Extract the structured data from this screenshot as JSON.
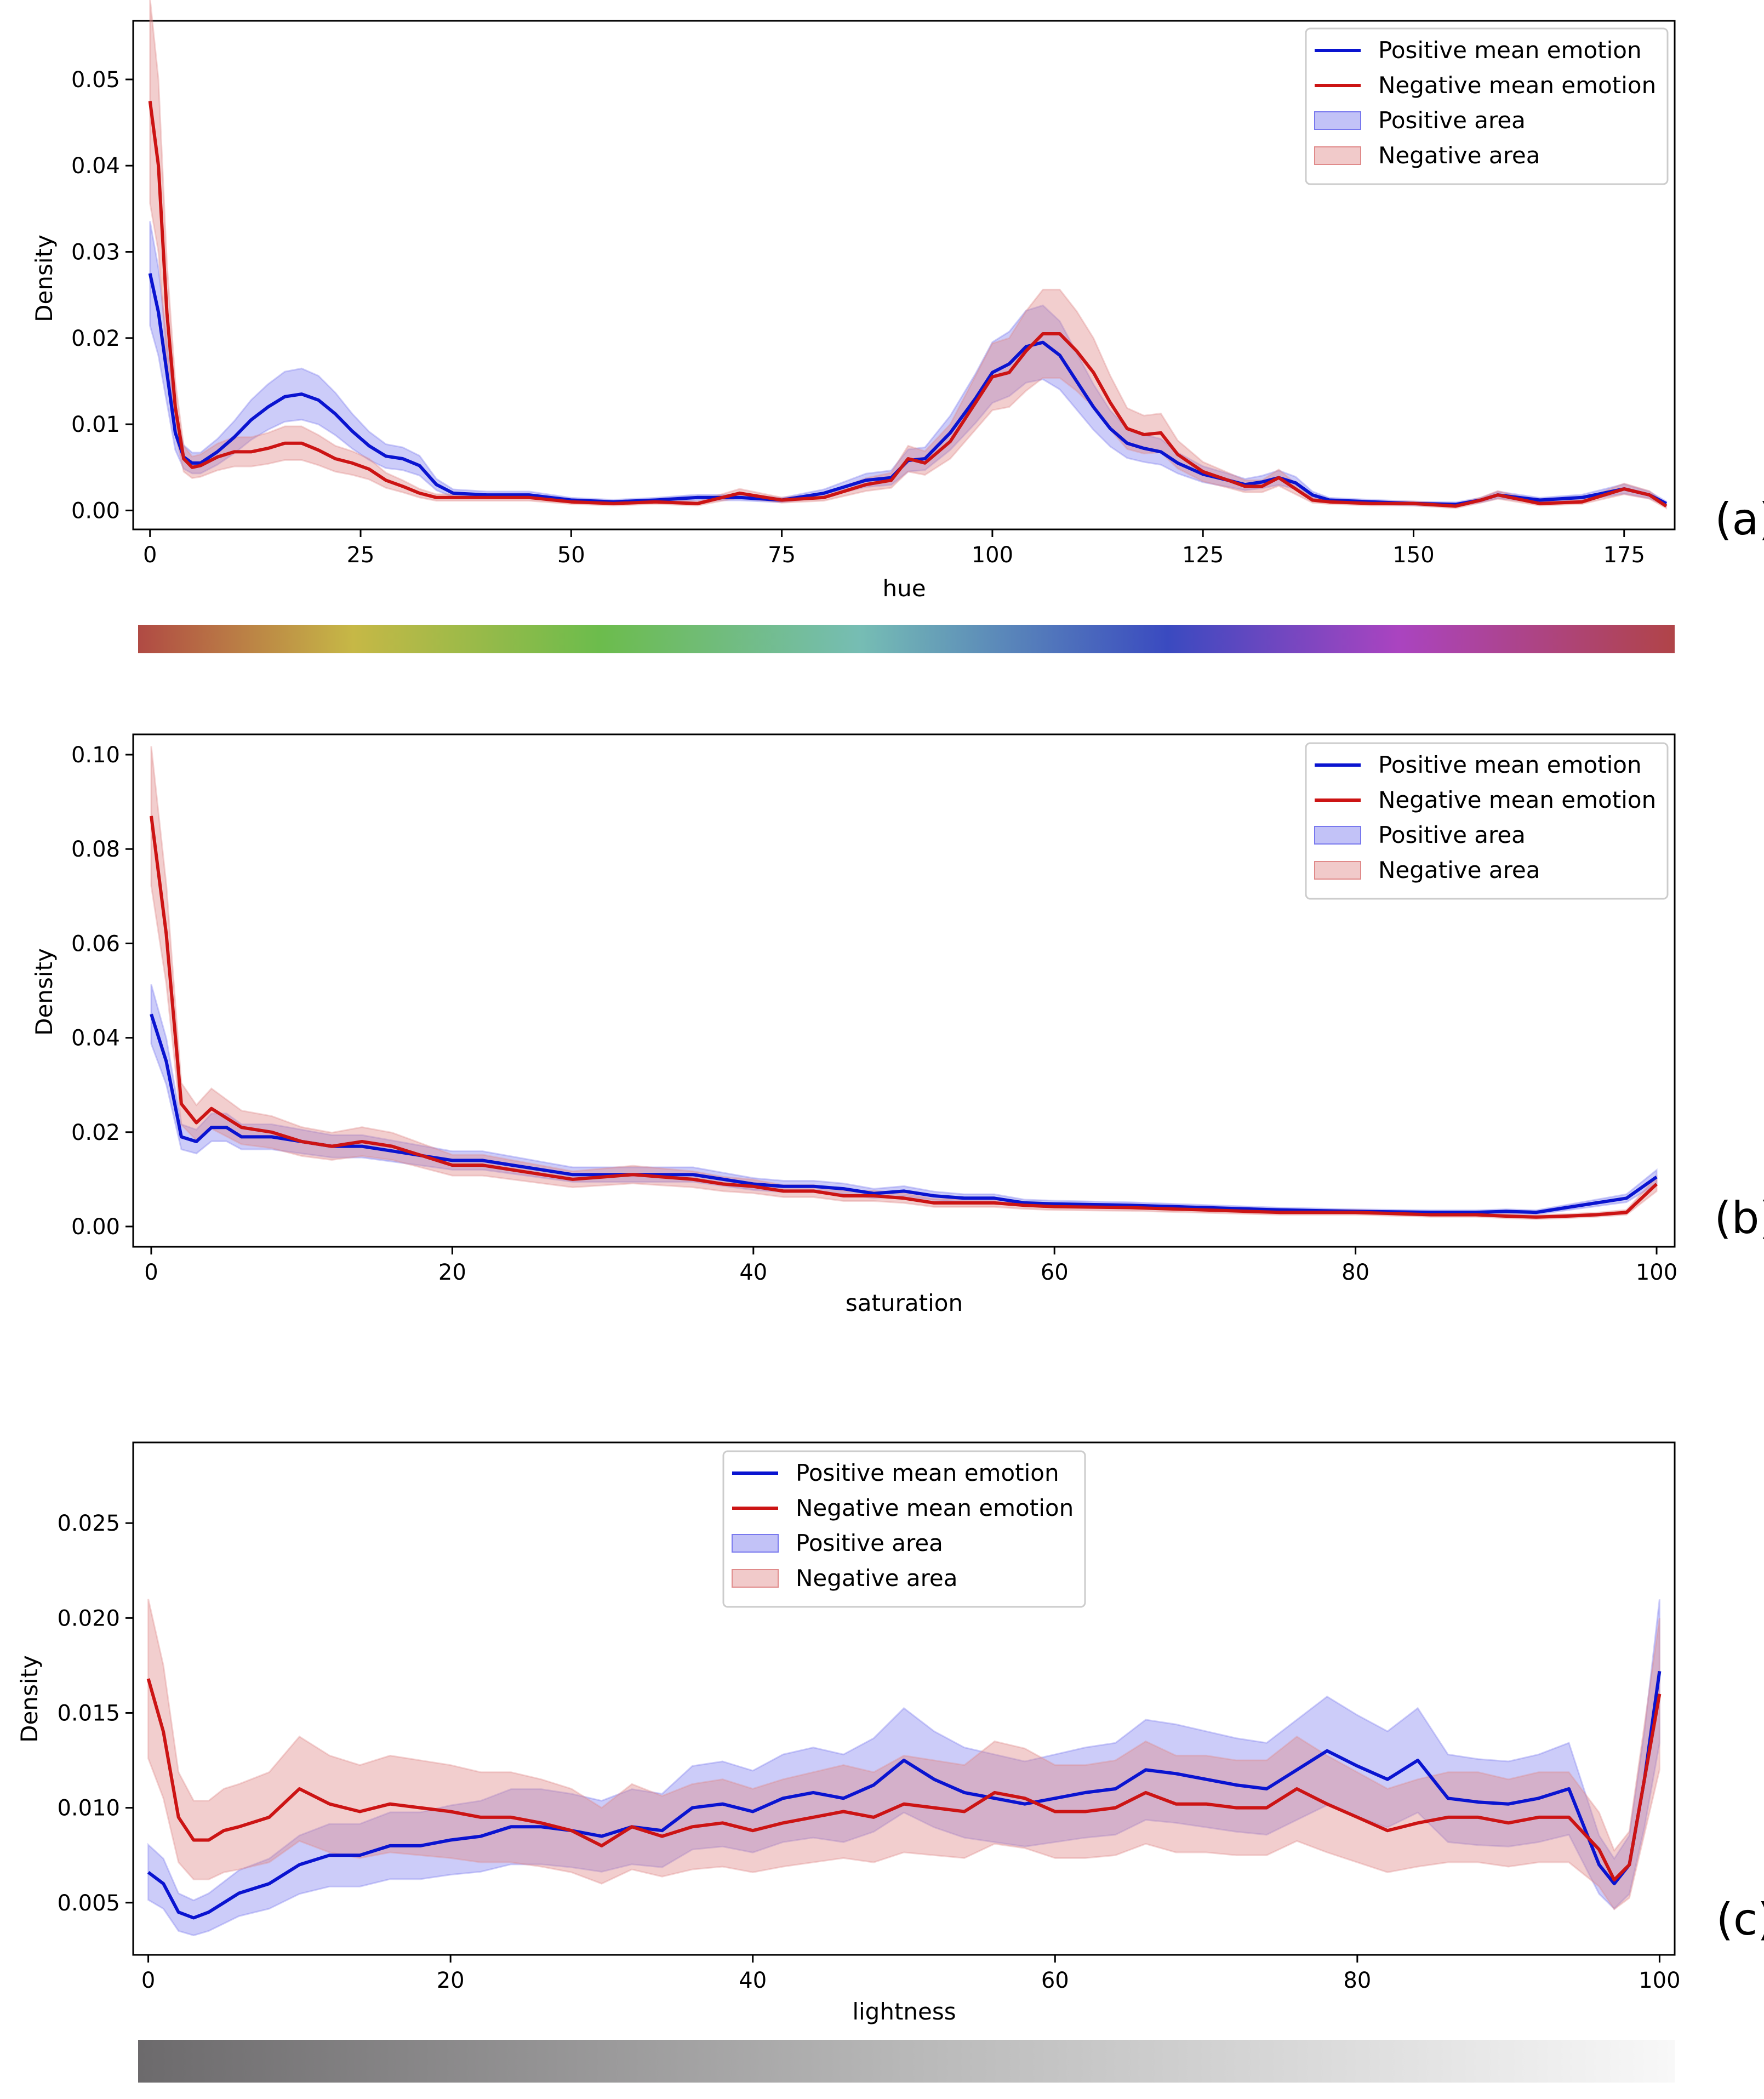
{
  "colors": {
    "positive": "#0a14d0",
    "negative": "#cc1414",
    "positive_area": "#7878ee",
    "negative_area": "#e08a8a"
  },
  "chart_data": [
    {
      "type": "line",
      "panel": "(a)",
      "xlabel": "hue",
      "ylabel": "Density",
      "xlim": [
        -2,
        181
      ],
      "ylim": [
        -0.0022,
        0.0568
      ],
      "xticks": [
        "0",
        "25",
        "50",
        "75",
        "100",
        "125",
        "150",
        "175"
      ],
      "yticks": [
        "0.00",
        "0.01",
        "0.02",
        "0.03",
        "0.04",
        "0.05"
      ],
      "legend": [
        "Positive mean emotion",
        "Negative mean emotion",
        "Positive area",
        "Negative area"
      ],
      "legend_position": "upper right",
      "colorbar": "hue gradient",
      "series": [
        {
          "name": "Positive mean emotion",
          "x": [
            0,
            1,
            2,
            3,
            4,
            5,
            6,
            8,
            10,
            12,
            14,
            16,
            18,
            20,
            22,
            24,
            26,
            28,
            30,
            32,
            34,
            36,
            40,
            45,
            50,
            55,
            60,
            65,
            70,
            75,
            80,
            85,
            88,
            90,
            92,
            95,
            98,
            100,
            102,
            104,
            106,
            108,
            110,
            112,
            114,
            116,
            118,
            120,
            122,
            125,
            128,
            130,
            132,
            134,
            136,
            138,
            140,
            145,
            150,
            155,
            158,
            160,
            165,
            170,
            175,
            178,
            180
          ],
          "values": [
            0.0275,
            0.023,
            0.016,
            0.009,
            0.0062,
            0.0055,
            0.0055,
            0.0068,
            0.0085,
            0.0105,
            0.012,
            0.0132,
            0.0135,
            0.0128,
            0.0112,
            0.0092,
            0.0075,
            0.0063,
            0.006,
            0.0052,
            0.003,
            0.002,
            0.0018,
            0.0018,
            0.0012,
            0.001,
            0.0012,
            0.0015,
            0.0015,
            0.0012,
            0.002,
            0.0035,
            0.0038,
            0.0058,
            0.006,
            0.009,
            0.013,
            0.016,
            0.017,
            0.019,
            0.0195,
            0.018,
            0.015,
            0.012,
            0.0095,
            0.0078,
            0.0072,
            0.0068,
            0.0055,
            0.0042,
            0.0035,
            0.003,
            0.0033,
            0.0038,
            0.0032,
            0.0018,
            0.0012,
            0.001,
            0.0008,
            0.0007,
            0.0012,
            0.0018,
            0.0012,
            0.0015,
            0.0025,
            0.0018,
            0.0008
          ]
        },
        {
          "name": "Negative mean emotion",
          "x": [
            0,
            1,
            2,
            3,
            4,
            5,
            6,
            8,
            10,
            12,
            14,
            16,
            18,
            20,
            22,
            24,
            26,
            28,
            30,
            32,
            34,
            36,
            40,
            45,
            50,
            55,
            60,
            65,
            70,
            75,
            80,
            85,
            88,
            90,
            92,
            95,
            98,
            100,
            102,
            104,
            106,
            108,
            110,
            112,
            114,
            116,
            118,
            120,
            122,
            125,
            128,
            130,
            132,
            134,
            136,
            138,
            140,
            145,
            150,
            155,
            158,
            160,
            165,
            170,
            175,
            178,
            180
          ],
          "values": [
            0.0475,
            0.04,
            0.023,
            0.012,
            0.006,
            0.005,
            0.0052,
            0.0062,
            0.0068,
            0.0068,
            0.0072,
            0.0078,
            0.0078,
            0.007,
            0.006,
            0.0055,
            0.0048,
            0.0035,
            0.0028,
            0.002,
            0.0015,
            0.0015,
            0.0015,
            0.0015,
            0.001,
            0.0008,
            0.001,
            0.0008,
            0.002,
            0.0012,
            0.0015,
            0.003,
            0.0035,
            0.006,
            0.0055,
            0.008,
            0.0125,
            0.0155,
            0.016,
            0.0185,
            0.0205,
            0.0205,
            0.0185,
            0.016,
            0.0125,
            0.0095,
            0.0088,
            0.009,
            0.0065,
            0.0045,
            0.0035,
            0.0028,
            0.0028,
            0.0038,
            0.0025,
            0.0012,
            0.001,
            0.0008,
            0.0008,
            0.0005,
            0.0012,
            0.0018,
            0.0008,
            0.001,
            0.0025,
            0.0018,
            0.0005
          ]
        }
      ]
    },
    {
      "type": "line",
      "panel": "(b)",
      "xlabel": "saturation",
      "ylabel": "Density",
      "xlim": [
        -1.2,
        101.2
      ],
      "ylim": [
        -0.0043,
        0.1043
      ],
      "xticks": [
        "0",
        "20",
        "40",
        "60",
        "80",
        "100"
      ],
      "yticks": [
        "0.00",
        "0.02",
        "0.04",
        "0.06",
        "0.08",
        "0.10"
      ],
      "legend": [
        "Positive mean emotion",
        "Negative mean emotion",
        "Positive area",
        "Negative area"
      ],
      "legend_position": "upper right",
      "series": [
        {
          "name": "Positive mean emotion",
          "x": [
            0,
            1,
            2,
            3,
            4,
            5,
            6,
            8,
            10,
            12,
            14,
            16,
            18,
            20,
            22,
            24,
            26,
            28,
            30,
            32,
            34,
            36,
            38,
            40,
            42,
            44,
            46,
            48,
            50,
            52,
            54,
            56,
            58,
            60,
            65,
            70,
            75,
            80,
            85,
            88,
            90,
            92,
            94,
            96,
            98,
            100
          ],
          "values": [
            0.045,
            0.035,
            0.019,
            0.018,
            0.021,
            0.021,
            0.019,
            0.019,
            0.018,
            0.017,
            0.017,
            0.016,
            0.015,
            0.014,
            0.014,
            0.013,
            0.012,
            0.011,
            0.011,
            0.011,
            0.011,
            0.011,
            0.01,
            0.009,
            0.0085,
            0.0085,
            0.008,
            0.007,
            0.0075,
            0.0065,
            0.006,
            0.006,
            0.005,
            0.0048,
            0.0045,
            0.004,
            0.0035,
            0.0032,
            0.003,
            0.003,
            0.0032,
            0.003,
            0.004,
            0.005,
            0.006,
            0.0105
          ]
        },
        {
          "name": "Negative mean emotion",
          "x": [
            0,
            1,
            2,
            3,
            4,
            5,
            6,
            8,
            10,
            12,
            14,
            16,
            18,
            20,
            22,
            24,
            26,
            28,
            30,
            32,
            34,
            36,
            38,
            40,
            42,
            44,
            46,
            48,
            50,
            52,
            54,
            56,
            58,
            60,
            65,
            70,
            75,
            80,
            85,
            88,
            90,
            92,
            94,
            96,
            98,
            100
          ],
          "values": [
            0.087,
            0.062,
            0.026,
            0.022,
            0.025,
            0.023,
            0.021,
            0.02,
            0.018,
            0.017,
            0.018,
            0.017,
            0.015,
            0.013,
            0.013,
            0.012,
            0.011,
            0.01,
            0.0105,
            0.011,
            0.0105,
            0.01,
            0.009,
            0.0085,
            0.0075,
            0.0075,
            0.0065,
            0.0065,
            0.006,
            0.005,
            0.005,
            0.005,
            0.0045,
            0.0042,
            0.004,
            0.0035,
            0.003,
            0.003,
            0.0025,
            0.0025,
            0.0022,
            0.002,
            0.0022,
            0.0025,
            0.003,
            0.009
          ]
        }
      ]
    },
    {
      "type": "line",
      "panel": "(c)",
      "xlabel": "lightness",
      "ylabel": "Density",
      "xlim": [
        -1,
        101
      ],
      "ylim": [
        0.00225,
        0.02925
      ],
      "xticks": [
        "0",
        "20",
        "40",
        "60",
        "80",
        "100"
      ],
      "yticks": [
        "0.005",
        "0.010",
        "0.015",
        "0.020",
        "0.025"
      ],
      "legend": [
        "Positive mean emotion",
        "Negative mean emotion",
        "Positive area",
        "Negative area"
      ],
      "legend_position": "upper center",
      "colorbar": "lightness gradient",
      "series": [
        {
          "name": "Positive mean emotion",
          "x": [
            0,
            1,
            2,
            3,
            4,
            5,
            6,
            8,
            10,
            12,
            14,
            16,
            18,
            20,
            22,
            24,
            26,
            28,
            30,
            32,
            34,
            36,
            38,
            40,
            42,
            44,
            46,
            48,
            50,
            52,
            54,
            56,
            58,
            60,
            62,
            64,
            66,
            68,
            70,
            72,
            74,
            76,
            78,
            80,
            82,
            84,
            86,
            88,
            90,
            92,
            94,
            96,
            97,
            98,
            99,
            100
          ],
          "values": [
            0.0066,
            0.006,
            0.0045,
            0.0042,
            0.0045,
            0.005,
            0.0055,
            0.006,
            0.007,
            0.0075,
            0.0075,
            0.008,
            0.008,
            0.0083,
            0.0085,
            0.009,
            0.009,
            0.0088,
            0.0085,
            0.009,
            0.0088,
            0.01,
            0.0102,
            0.0098,
            0.0105,
            0.0108,
            0.0105,
            0.0112,
            0.0125,
            0.0115,
            0.0108,
            0.0105,
            0.0102,
            0.0105,
            0.0108,
            0.011,
            0.012,
            0.0118,
            0.0115,
            0.0112,
            0.011,
            0.012,
            0.013,
            0.0122,
            0.0115,
            0.0125,
            0.0105,
            0.0103,
            0.0102,
            0.0105,
            0.011,
            0.007,
            0.006,
            0.007,
            0.0115,
            0.0172
          ]
        },
        {
          "name": "Negative mean emotion",
          "x": [
            0,
            1,
            2,
            3,
            4,
            5,
            6,
            8,
            10,
            12,
            14,
            16,
            18,
            20,
            22,
            24,
            26,
            28,
            30,
            32,
            34,
            36,
            38,
            40,
            42,
            44,
            46,
            48,
            50,
            52,
            54,
            56,
            58,
            60,
            62,
            64,
            66,
            68,
            70,
            72,
            74,
            76,
            78,
            80,
            82,
            84,
            86,
            88,
            90,
            92,
            94,
            96,
            97,
            98,
            99,
            100
          ],
          "values": [
            0.0168,
            0.014,
            0.0095,
            0.0083,
            0.0083,
            0.0088,
            0.009,
            0.0095,
            0.011,
            0.0102,
            0.0098,
            0.0102,
            0.01,
            0.0098,
            0.0095,
            0.0095,
            0.0092,
            0.0088,
            0.008,
            0.009,
            0.0085,
            0.009,
            0.0092,
            0.0088,
            0.0092,
            0.0095,
            0.0098,
            0.0095,
            0.0102,
            0.01,
            0.0098,
            0.0108,
            0.0105,
            0.0098,
            0.0098,
            0.01,
            0.0108,
            0.0102,
            0.0102,
            0.01,
            0.01,
            0.011,
            0.0102,
            0.0095,
            0.0088,
            0.0092,
            0.0095,
            0.0095,
            0.0092,
            0.0095,
            0.0095,
            0.0078,
            0.0062,
            0.007,
            0.0115,
            0.016
          ]
        }
      ]
    }
  ]
}
